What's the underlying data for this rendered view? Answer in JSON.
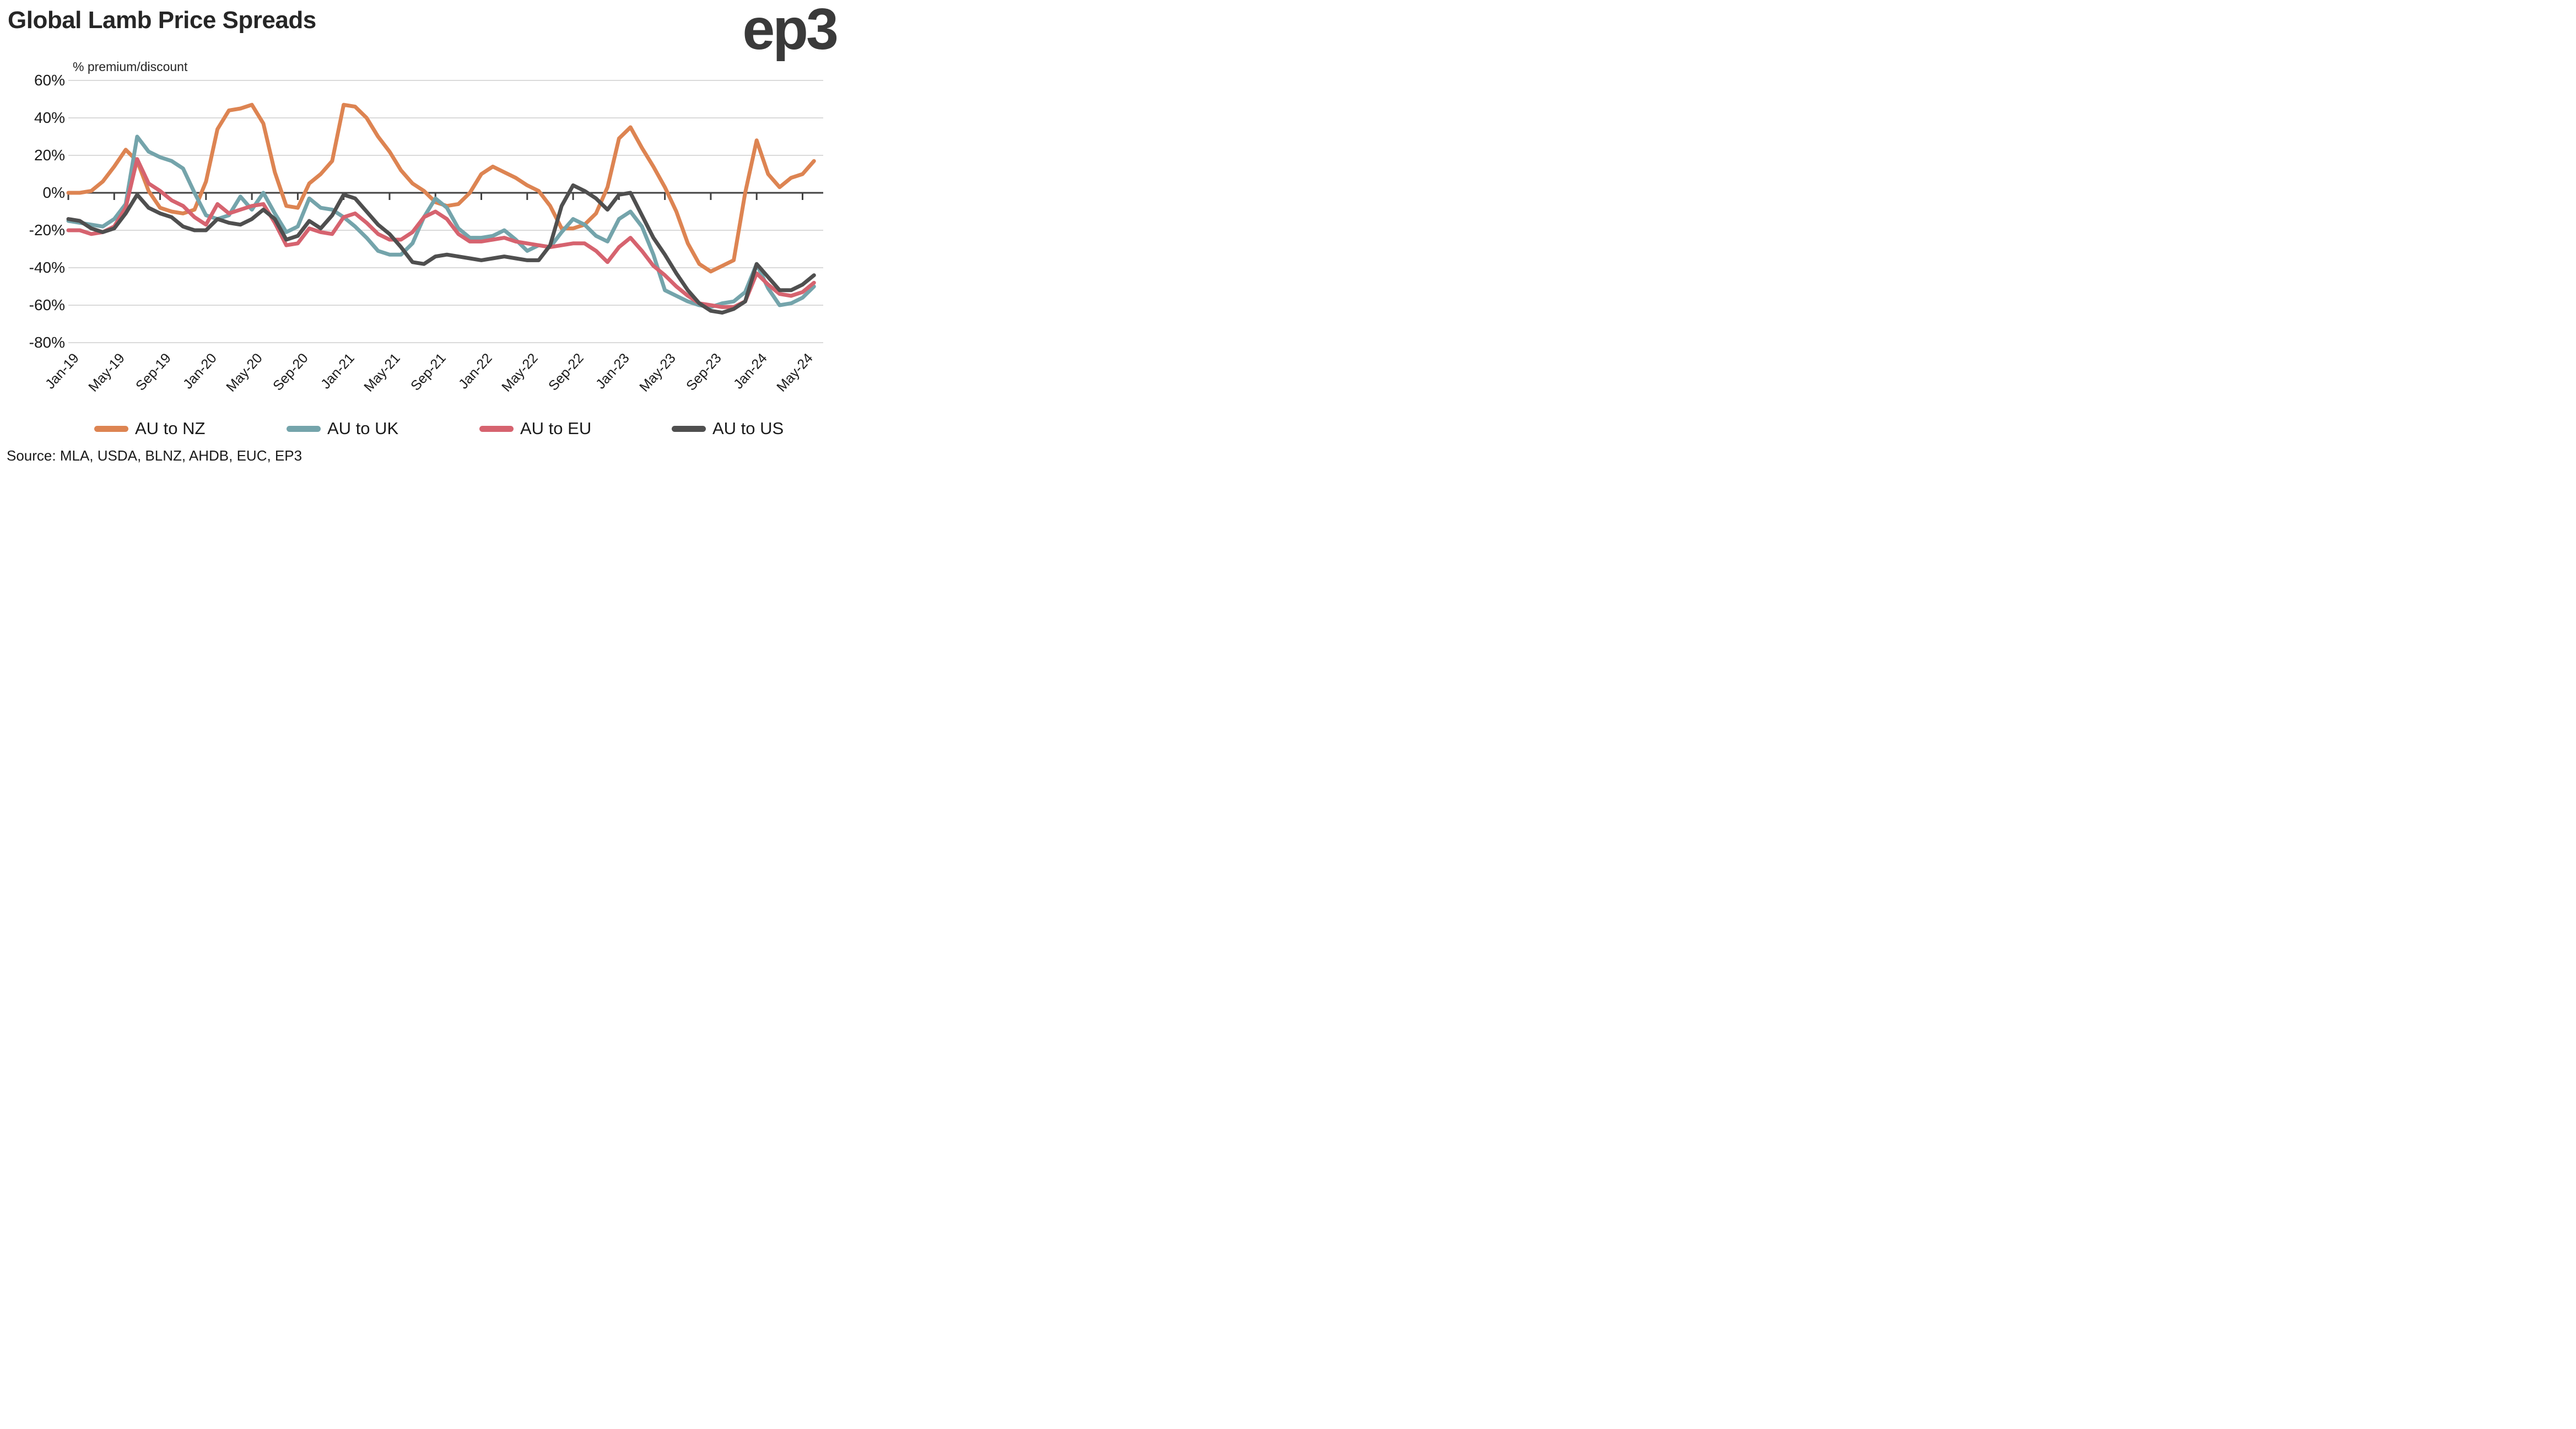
{
  "header": {
    "title": "Global Lamb Price Spreads",
    "logo": "ep3"
  },
  "chart": {
    "subtitle": "% premium/discount"
  },
  "source": {
    "label": "Source: MLA, USDA, BLNZ, AHDB, EUC, EP3"
  },
  "legend": [
    {
      "label": "AU to NZ",
      "color": "#DD8452"
    },
    {
      "label": "AU to UK",
      "color": "#74A4AB"
    },
    {
      "label": "AU to EU",
      "color": "#D6636F"
    },
    {
      "label": "AU to US",
      "color": "#4F4F4F"
    }
  ],
  "chart_data": {
    "type": "line",
    "title": "Global Lamb Price Spreads",
    "ylabel": "% premium/discount",
    "ylim": [
      -80,
      60
    ],
    "ytick_step": 20,
    "grid": true,
    "legend_position": "bottom",
    "y_ticks": [
      {
        "value": 60,
        "label": "60%"
      },
      {
        "value": 40,
        "label": "40%"
      },
      {
        "value": 20,
        "label": "20%"
      },
      {
        "value": 0,
        "label": "0%"
      },
      {
        "value": -20,
        "label": "-20%"
      },
      {
        "value": -40,
        "label": "-40%"
      },
      {
        "value": -60,
        "label": "-60%"
      },
      {
        "value": -80,
        "label": "-80%"
      }
    ],
    "x": [
      "Jan-19",
      "Feb-19",
      "Mar-19",
      "Apr-19",
      "May-19",
      "Jun-19",
      "Jul-19",
      "Aug-19",
      "Sep-19",
      "Oct-19",
      "Nov-19",
      "Dec-19",
      "Jan-20",
      "Feb-20",
      "Mar-20",
      "Apr-20",
      "May-20",
      "Jun-20",
      "Jul-20",
      "Aug-20",
      "Sep-20",
      "Oct-20",
      "Nov-20",
      "Dec-20",
      "Jan-21",
      "Feb-21",
      "Mar-21",
      "Apr-21",
      "May-21",
      "Jun-21",
      "Jul-21",
      "Aug-21",
      "Sep-21",
      "Oct-21",
      "Nov-21",
      "Dec-21",
      "Jan-22",
      "Feb-22",
      "Mar-22",
      "Apr-22",
      "May-22",
      "Jun-22",
      "Jul-22",
      "Aug-22",
      "Sep-22",
      "Oct-22",
      "Nov-22",
      "Dec-22",
      "Jan-23",
      "Feb-23",
      "Mar-23",
      "Apr-23",
      "May-23",
      "Jun-23",
      "Jul-23",
      "Aug-23",
      "Sep-23",
      "Oct-23",
      "Nov-23",
      "Dec-23",
      "Jan-24",
      "Feb-24",
      "Mar-24",
      "Apr-24",
      "May-24",
      "Jun-24"
    ],
    "x_tick_every": 4,
    "x_tick_labels": [
      "Jan-19",
      "May-19",
      "Sep-19",
      "Jan-20",
      "May-20",
      "Sep-20",
      "Jan-21",
      "May-21",
      "Sep-21",
      "Jan-22",
      "May-22",
      "Sep-22",
      "Jan-23",
      "May-23",
      "Sep-23",
      "Jan-24",
      "May-24"
    ],
    "series": [
      {
        "name": "AU to NZ",
        "color": "#DD8452",
        "values": [
          0,
          0,
          1,
          6,
          14,
          23,
          17,
          1,
          -8,
          -10,
          -11,
          -9,
          6,
          34,
          44,
          45,
          47,
          37,
          11,
          -7,
          -8,
          5,
          10,
          17,
          47,
          46,
          40,
          30,
          22,
          12,
          5,
          1,
          -5,
          -7,
          -6,
          0,
          10,
          14,
          11,
          8,
          4,
          1,
          -7,
          -19,
          -19,
          -17,
          -11,
          3,
          29,
          35,
          24,
          14,
          3,
          -10,
          -27,
          -38,
          -42,
          -39,
          -36,
          0,
          28,
          10,
          3,
          8,
          10,
          17
        ]
      },
      {
        "name": "AU to UK",
        "color": "#74A4AB",
        "values": [
          -15,
          -16,
          -17,
          -18,
          -14,
          -6,
          30,
          22,
          19,
          17,
          13,
          0,
          -12,
          -14,
          -12,
          -2,
          -9,
          0,
          -11,
          -21,
          -18,
          -3,
          -8,
          -9,
          -13,
          -18,
          -24,
          -31,
          -33,
          -33,
          -27,
          -13,
          -3,
          -8,
          -19,
          -24,
          -24,
          -23,
          -20,
          -25,
          -31,
          -28,
          -29,
          -21,
          -14,
          -17,
          -23,
          -26,
          -14,
          -10,
          -18,
          -33,
          -52,
          -55,
          -58,
          -60,
          -61,
          -59,
          -58,
          -53,
          -38,
          -51,
          -60,
          -59,
          -56,
          -50
        ]
      },
      {
        "name": "AU to EU",
        "color": "#D6636F",
        "values": [
          -20,
          -20,
          -22,
          -21,
          -18,
          -8,
          18,
          5,
          1,
          -4,
          -7,
          -13,
          -17,
          -6,
          -11,
          -9,
          -7,
          -6,
          -16,
          -28,
          -27,
          -19,
          -21,
          -22,
          -13,
          -11,
          -16,
          -22,
          -25,
          -25,
          -21,
          -13,
          -10,
          -14,
          -22,
          -26,
          -26,
          -25,
          -24,
          -26,
          -27,
          -28,
          -29,
          -28,
          -27,
          -27,
          -31,
          -37,
          -29,
          -24,
          -31,
          -39,
          -44,
          -50,
          -55,
          -59,
          -60,
          -61,
          -61,
          -58,
          -43,
          -49,
          -54,
          -55,
          -53,
          -48
        ]
      },
      {
        "name": "AU to US",
        "color": "#4F4F4F",
        "values": [
          -14,
          -15,
          -19,
          -21,
          -19,
          -11,
          -1,
          -8,
          -11,
          -13,
          -18,
          -20,
          -20,
          -14,
          -16,
          -17,
          -14,
          -9,
          -14,
          -25,
          -23,
          -15,
          -19,
          -12,
          -1,
          -3,
          -10,
          -17,
          -22,
          -29,
          -37,
          -38,
          -34,
          -33,
          -34,
          -35,
          -36,
          -35,
          -34,
          -35,
          -36,
          -36,
          -28,
          -7,
          4,
          1,
          -3,
          -9,
          -1,
          0,
          -12,
          -24,
          -33,
          -43,
          -52,
          -59,
          -63,
          -64,
          -62,
          -58,
          -38,
          -45,
          -52,
          -52,
          -49,
          -44
        ]
      }
    ],
    "axis_color": "#414141",
    "gridline_color": "#DADADA"
  }
}
